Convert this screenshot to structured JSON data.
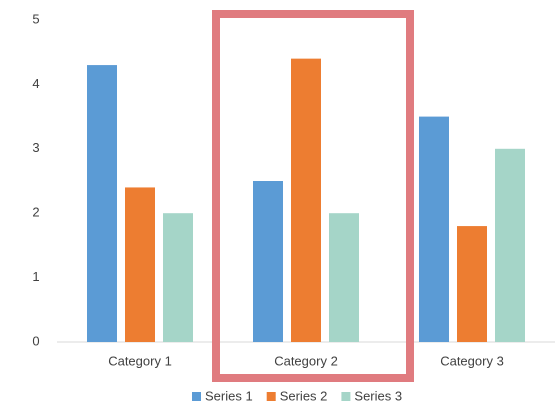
{
  "chart_data": {
    "type": "bar",
    "categories": [
      "Category 1",
      "Category 2",
      "Category 3"
    ],
    "series": [
      {
        "name": "Series 1",
        "color": "#5b9bd5",
        "values": [
          4.3,
          2.5,
          3.5
        ]
      },
      {
        "name": "Series 2",
        "color": "#ed7d31",
        "values": [
          2.4,
          4.4,
          1.8
        ]
      },
      {
        "name": "Series 3",
        "color": "#a5d5c8",
        "values": [
          2,
          2,
          3
        ]
      }
    ],
    "ylim": [
      0,
      5
    ],
    "yticks": [
      0,
      1,
      2,
      3,
      4,
      5
    ]
  }
}
